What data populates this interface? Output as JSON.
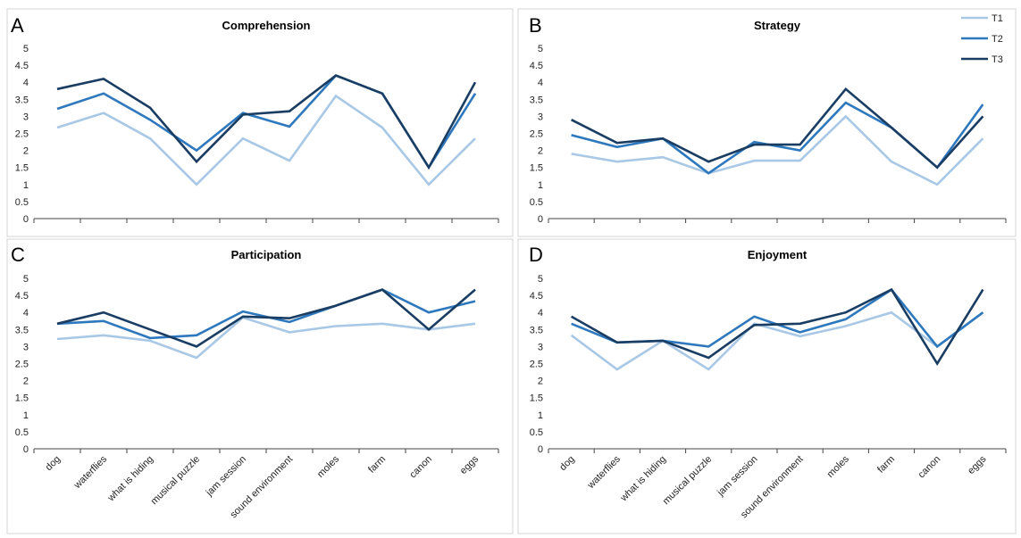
{
  "legend": [
    {
      "name": "T1",
      "color": "#a8c8e6"
    },
    {
      "name": "T2",
      "color": "#2e78bd"
    },
    {
      "name": "T3",
      "color": "#1a3d63"
    }
  ],
  "chart_data": [
    {
      "type": "line",
      "panel": "A",
      "title": "Comprehension",
      "ylim": [
        0,
        5
      ],
      "yticks": [
        "0",
        "0.5",
        "1",
        "1.5",
        "2",
        "2.5",
        "3",
        "3.5",
        "4",
        "4.5",
        "5"
      ],
      "categories": [
        "dog",
        "waterflies",
        "what is hiding",
        "musical puzzle",
        "jam session",
        "sound environment",
        "moles",
        "farm",
        "canon",
        "eggs"
      ],
      "series": [
        {
          "name": "T1",
          "values": [
            2.67,
            3.1,
            2.35,
            1.0,
            2.35,
            1.7,
            3.6,
            2.67,
            1.0,
            2.35
          ]
        },
        {
          "name": "T2",
          "values": [
            3.22,
            3.67,
            2.9,
            2.0,
            3.1,
            2.7,
            4.2,
            3.67,
            1.5,
            3.67
          ]
        },
        {
          "name": "T3",
          "values": [
            3.8,
            4.1,
            3.25,
            1.67,
            3.05,
            3.15,
            4.2,
            3.67,
            1.5,
            4.0
          ]
        }
      ]
    },
    {
      "type": "line",
      "panel": "B",
      "title": "Strategy",
      "ylim": [
        0,
        5
      ],
      "yticks": [
        "0",
        "0.5",
        "1",
        "1.5",
        "2",
        "2.5",
        "3",
        "3.5",
        "4",
        "4.5",
        "5"
      ],
      "categories": [
        "dog",
        "waterflies",
        "what is hiding",
        "musical puzzle",
        "jam session",
        "sound environment",
        "moles",
        "farm",
        "canon",
        "eggs"
      ],
      "series": [
        {
          "name": "T1",
          "values": [
            1.9,
            1.67,
            1.8,
            1.33,
            1.7,
            1.7,
            3.0,
            1.67,
            1.0,
            2.35
          ]
        },
        {
          "name": "T2",
          "values": [
            2.45,
            2.1,
            2.35,
            1.33,
            2.25,
            2.0,
            3.4,
            2.67,
            1.5,
            3.35
          ]
        },
        {
          "name": "T3",
          "values": [
            2.9,
            2.22,
            2.35,
            1.67,
            2.17,
            2.17,
            3.8,
            2.67,
            1.5,
            3.0
          ]
        }
      ]
    },
    {
      "type": "line",
      "panel": "C",
      "title": "Participation",
      "ylim": [
        0,
        5
      ],
      "yticks": [
        "0",
        "0.5",
        "1",
        "1.5",
        "2",
        "2.5",
        "3",
        "3.5",
        "4",
        "4.5",
        "5"
      ],
      "categories": [
        "dog",
        "waterflies",
        "what is hiding",
        "musical puzzle",
        "jam session",
        "sound environment",
        "moles",
        "farm",
        "canon",
        "eggs"
      ],
      "series": [
        {
          "name": "T1",
          "values": [
            3.22,
            3.33,
            3.17,
            2.67,
            3.85,
            3.42,
            3.6,
            3.67,
            3.5,
            3.67
          ]
        },
        {
          "name": "T2",
          "values": [
            3.67,
            3.75,
            3.25,
            3.33,
            4.03,
            3.72,
            4.2,
            4.67,
            4.0,
            4.33
          ]
        },
        {
          "name": "T3",
          "values": [
            3.67,
            4.0,
            3.5,
            3.0,
            3.88,
            3.83,
            4.2,
            4.67,
            3.5,
            4.67
          ]
        }
      ]
    },
    {
      "type": "line",
      "panel": "D",
      "title": "Enjoyment",
      "ylim": [
        0,
        5
      ],
      "yticks": [
        "0",
        "0.5",
        "1",
        "1.5",
        "2",
        "2.5",
        "3",
        "3.5",
        "4",
        "4.5",
        "5"
      ],
      "categories": [
        "dog",
        "waterflies",
        "what is hiding",
        "musical puzzle",
        "jam session",
        "sound environment",
        "moles",
        "farm",
        "canon",
        "eggs"
      ],
      "series": [
        {
          "name": "T1",
          "values": [
            3.33,
            2.33,
            3.17,
            2.33,
            3.67,
            3.3,
            3.6,
            4.0,
            3.0,
            4.0
          ]
        },
        {
          "name": "T2",
          "values": [
            3.67,
            3.12,
            3.17,
            3.0,
            3.88,
            3.42,
            3.8,
            4.67,
            3.0,
            4.0
          ]
        },
        {
          "name": "T3",
          "values": [
            3.88,
            3.12,
            3.17,
            2.67,
            3.63,
            3.67,
            4.0,
            4.67,
            2.5,
            4.67
          ]
        }
      ]
    }
  ]
}
